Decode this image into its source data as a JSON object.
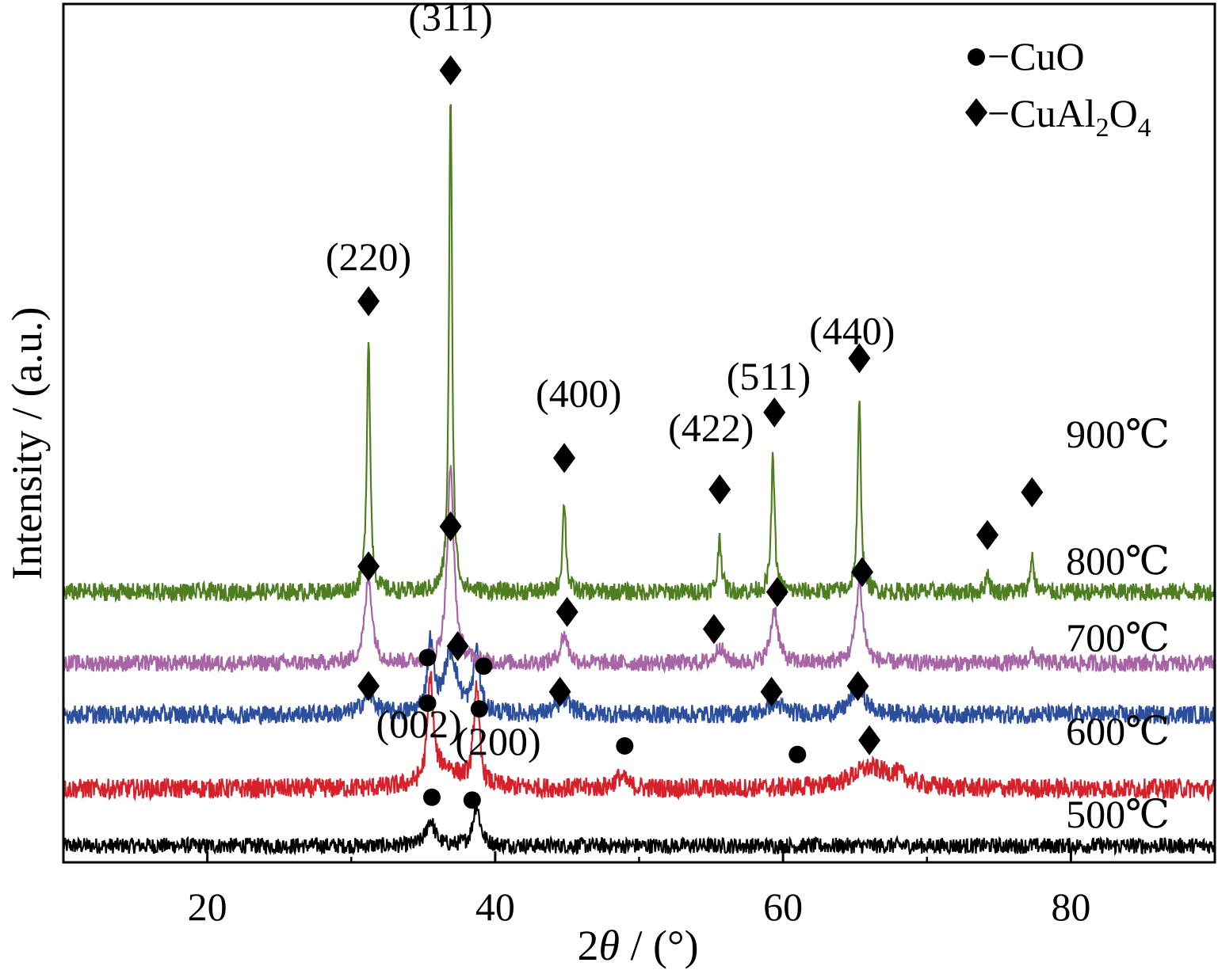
{
  "chart_data": {
    "type": "line",
    "xlabel_parts": [
      "2",
      "θ",
      " / (°)"
    ],
    "ylabel": "Intensity / (a.u.)",
    "xlim": [
      10,
      90
    ],
    "x_ticks": [
      20,
      40,
      60,
      80
    ],
    "y_ticks": [],
    "grid": false,
    "legend": {
      "placement": "top-right",
      "items": [
        {
          "marker": "circle",
          "prefix": "−CuO"
        },
        {
          "marker": "diamond",
          "prefix": "−CuAl",
          "sub1": "2",
          "mid": "O",
          "sub2": "4"
        }
      ]
    },
    "series": [
      {
        "name": "500℃",
        "color": "#000000",
        "baseline": 0,
        "noise": 0.28,
        "peaks": [
          [
            35.5,
            0.9,
            0.35
          ],
          [
            38.7,
            1.4,
            0.3
          ]
        ]
      },
      {
        "name": "600℃",
        "color": "#d6212a",
        "baseline": 2.0,
        "noise": 0.35,
        "peaks": [
          [
            35.5,
            3.6,
            0.22
          ],
          [
            38.7,
            3.5,
            0.22
          ],
          [
            36.5,
            0.7,
            1.3
          ],
          [
            48.7,
            0.4,
            0.5
          ],
          [
            66,
            0.7,
            1.6
          ],
          [
            68,
            0.3,
            0.8
          ]
        ]
      },
      {
        "name": "700℃",
        "color": "#2b4f9d",
        "baseline": 4.6,
        "noise": 0.33,
        "peaks": [
          [
            31.2,
            0.7,
            0.5
          ],
          [
            35.5,
            2.4,
            0.25
          ],
          [
            36.9,
            2.1,
            0.55
          ],
          [
            38.7,
            2.2,
            0.25
          ],
          [
            44.8,
            0.5,
            0.6
          ],
          [
            59.4,
            0.4,
            0.6
          ],
          [
            65.2,
            1.0,
            0.55
          ]
        ]
      },
      {
        "name": "800℃",
        "color": "#a765a5",
        "baseline": 6.4,
        "noise": 0.3,
        "peaks": [
          [
            31.2,
            3.0,
            0.3
          ],
          [
            36.9,
            6.8,
            0.28
          ],
          [
            44.8,
            1.0,
            0.3
          ],
          [
            55.6,
            0.6,
            0.3
          ],
          [
            59.4,
            1.9,
            0.3
          ],
          [
            65.3,
            2.8,
            0.3
          ],
          [
            77.3,
            0.3,
            0.3
          ]
        ]
      },
      {
        "name": "900℃",
        "color": "#4e7e1f",
        "baseline": 8.9,
        "noise": 0.32,
        "peaks": [
          [
            31.2,
            9.0,
            0.14
          ],
          [
            36.9,
            17.4,
            0.13
          ],
          [
            44.8,
            3.2,
            0.14
          ],
          [
            55.6,
            2.0,
            0.14
          ],
          [
            59.3,
            4.7,
            0.14
          ],
          [
            65.3,
            6.6,
            0.14
          ],
          [
            74.2,
            0.7,
            0.14
          ],
          [
            77.3,
            1.3,
            0.14
          ]
        ]
      }
    ],
    "temperature_labels": [
      "900℃",
      "800℃",
      "700℃",
      "600℃",
      "500℃"
    ],
    "peak_labels": [
      {
        "text": "(311)",
        "x": 36.9,
        "y": 28.6
      },
      {
        "text": "(220)",
        "x": 31.2,
        "y": 20.2
      },
      {
        "text": "(400)",
        "x": 45.8,
        "y": 15.4
      },
      {
        "text": "(422)",
        "x": 55.0,
        "y": 14.2
      },
      {
        "text": "(511)",
        "x": 59.0,
        "y": 16.0
      },
      {
        "text": "(440)",
        "x": 64.8,
        "y": 17.6
      },
      {
        "text": "(002)",
        "x": 34.7,
        "y": 3.8
      },
      {
        "text": "(200)",
        "x": 40.2,
        "y": 3.2
      }
    ],
    "markers": [
      {
        "type": "diamond",
        "x": 36.9,
        "y": 27.2
      },
      {
        "type": "diamond",
        "x": 31.2,
        "y": 19.1
      },
      {
        "type": "diamond",
        "x": 44.8,
        "y": 13.6
      },
      {
        "type": "diamond",
        "x": 55.6,
        "y": 12.5
      },
      {
        "type": "diamond",
        "x": 59.4,
        "y": 15.2
      },
      {
        "type": "diamond",
        "x": 65.3,
        "y": 17.1
      },
      {
        "type": "diamond",
        "x": 74.2,
        "y": 10.9
      },
      {
        "type": "diamond",
        "x": 77.3,
        "y": 12.4
      },
      {
        "type": "diamond",
        "x": 36.9,
        "y": 11.2
      },
      {
        "type": "diamond",
        "x": 31.2,
        "y": 9.8
      },
      {
        "type": "diamond",
        "x": 45.0,
        "y": 8.2
      },
      {
        "type": "diamond",
        "x": 55.2,
        "y": 7.6
      },
      {
        "type": "diamond",
        "x": 59.6,
        "y": 8.9
      },
      {
        "type": "diamond",
        "x": 65.5,
        "y": 9.6
      },
      {
        "type": "diamond",
        "x": 37.4,
        "y": 7.0
      },
      {
        "type": "diamond",
        "x": 31.2,
        "y": 5.6
      },
      {
        "type": "diamond",
        "x": 44.5,
        "y": 5.4
      },
      {
        "type": "diamond",
        "x": 59.2,
        "y": 5.4
      },
      {
        "type": "diamond",
        "x": 65.2,
        "y": 5.6
      },
      {
        "type": "diamond",
        "x": 66.0,
        "y": 3.7
      },
      {
        "type": "circle",
        "x": 35.3,
        "y": 6.6
      },
      {
        "type": "circle",
        "x": 39.2,
        "y": 6.3
      },
      {
        "type": "circle",
        "x": 35.3,
        "y": 5.0
      },
      {
        "type": "circle",
        "x": 38.9,
        "y": 4.8
      },
      {
        "type": "circle",
        "x": 49.0,
        "y": 3.5
      },
      {
        "type": "circle",
        "x": 61.0,
        "y": 3.2
      },
      {
        "type": "circle",
        "x": 35.6,
        "y": 1.7
      },
      {
        "type": "circle",
        "x": 38.4,
        "y": 1.6
      }
    ]
  }
}
